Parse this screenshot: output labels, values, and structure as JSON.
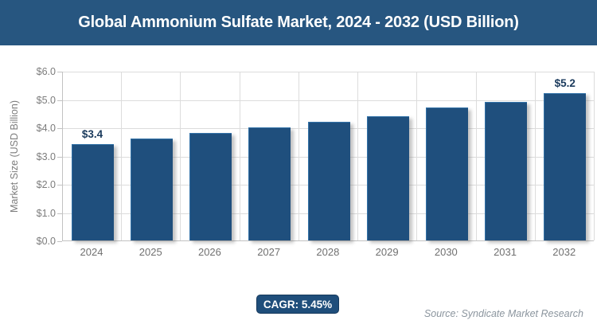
{
  "header": {
    "title": "Global Ammonium Sulfate Market, 2024 - 2032 (USD Billion)"
  },
  "chart_data": {
    "type": "bar",
    "title": "Global Ammonium Sulfate Market, 2024 - 2032 (USD Billion)",
    "categories": [
      "2024",
      "2025",
      "2026",
      "2027",
      "2028",
      "2029",
      "2030",
      "2031",
      "2032"
    ],
    "values": [
      3.4,
      3.6,
      3.8,
      4.0,
      4.2,
      4.4,
      4.7,
      4.9,
      5.2
    ],
    "bar_labels": [
      "$3.4",
      "",
      "",
      "",
      "",
      "",
      "",
      "",
      "$5.2"
    ],
    "xlabel": "",
    "ylabel": "Market Size (USD Billion)",
    "ylim": [
      0,
      6.0
    ],
    "ytick_step": 1.0,
    "ytick_labels": [
      "$0.0",
      "$1.0",
      "$2.0",
      "$3.0",
      "$4.0",
      "$5.0",
      "$6.0"
    ],
    "grid": "both",
    "legend": "none"
  },
  "footer": {
    "cagr_label": "CAGR: 5.45%",
    "source": "Source: Syndicate Market Research"
  },
  "colors": {
    "header_bg": "#275680",
    "bar_fill": "#1f4f7d",
    "bar_edge": "#3272a8",
    "badge_bg": "#1f4e7b",
    "grid": "#dcdcdc",
    "axis": "#c2c2c2",
    "tick_text": "#7c7c7c",
    "data_label_text": "#1a3a5c",
    "source_text": "#8b959e"
  }
}
